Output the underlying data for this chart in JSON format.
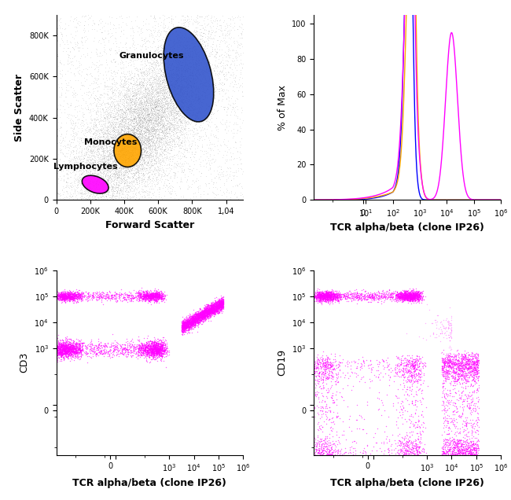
{
  "scatter_dot_color": "#888888",
  "scatter_dot_alpha": 0.25,
  "scatter_dot_size": 0.3,
  "granulocyte_color": "#3355CC",
  "monocyte_color": "#FFA500",
  "lymphocyte_color": "#FF00FF",
  "hist_colors": [
    "#0000FF",
    "#FFA500",
    "#FF00FF"
  ],
  "flow_dot_color": "#FF00FF",
  "panel1_xlabel": "Forward Scatter",
  "panel1_ylabel": "Side Scatter",
  "panel2_xlabel": "TCR alpha/beta (clone IP26)",
  "panel2_ylabel": "% of Max",
  "panel3_xlabel": "TCR alpha/beta (clone IP26)",
  "panel3_ylabel": "CD3",
  "panel4_xlabel": "TCR alpha/beta (clone IP26)",
  "panel4_ylabel": "CD19",
  "label_fontsize": 9,
  "tick_fontsize": 7,
  "background_color": "#ffffff"
}
